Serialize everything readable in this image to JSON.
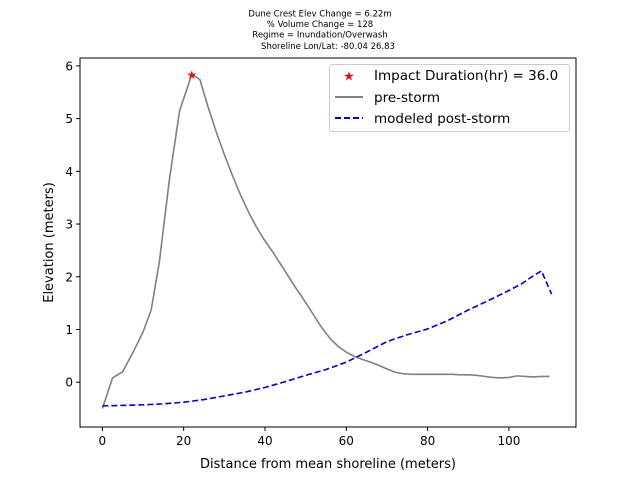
{
  "header_lines": [
    "Dune Crest Elev Change = 6.22m",
    "% Volume Change = 128",
    "Regime = Inundation/Overwash",
    "Shoreline Lon/Lat: -80.04 26.83"
  ],
  "chart_data": {
    "type": "line",
    "xlabel": "Distance from mean shoreline (meters)",
    "ylabel": "Elevation (meters)",
    "xlim": [
      -5.5,
      116.5
    ],
    "ylim": [
      -0.85,
      6.15
    ],
    "xticks": [
      0,
      20,
      40,
      60,
      80,
      100
    ],
    "yticks": [
      0,
      1,
      2,
      3,
      4,
      5,
      6
    ],
    "grid": false,
    "legend_position": "upper-right",
    "colors": {
      "pre": "#808080",
      "post": "#0000cc",
      "marker": "#dd1111"
    },
    "marker_point": {
      "name": "Impact Duration(hr) = 36.0",
      "x": 22,
      "y": 5.84
    },
    "series": [
      {
        "name": "pre-storm",
        "style": "solid",
        "x": [
          0,
          2.5,
          5,
          7.5,
          10,
          12,
          14,
          16.5,
          19,
          22,
          24,
          26,
          28,
          30,
          32,
          34,
          36,
          38,
          40,
          42,
          44,
          46,
          48,
          50,
          52,
          54,
          56,
          58,
          60,
          62,
          64,
          66,
          68,
          70,
          72,
          74,
          76,
          78,
          80,
          82,
          84,
          86,
          88,
          90,
          92,
          94,
          96,
          98,
          100,
          102,
          104,
          106,
          108,
          110
        ],
        "y": [
          -0.5,
          0.08,
          0.2,
          0.56,
          0.95,
          1.37,
          2.27,
          3.85,
          5.15,
          5.84,
          5.74,
          5.22,
          4.75,
          4.32,
          3.92,
          3.55,
          3.22,
          2.93,
          2.68,
          2.46,
          2.22,
          1.98,
          1.74,
          1.51,
          1.27,
          1.03,
          0.83,
          0.68,
          0.57,
          0.49,
          0.43,
          0.38,
          0.32,
          0.25,
          0.19,
          0.16,
          0.15,
          0.15,
          0.15,
          0.15,
          0.15,
          0.15,
          0.14,
          0.14,
          0.13,
          0.11,
          0.09,
          0.08,
          0.09,
          0.12,
          0.11,
          0.1,
          0.11,
          0.11
        ]
      },
      {
        "name": "modeled post-storm",
        "style": "dashed",
        "x": [
          0,
          10,
          15,
          20,
          25,
          30,
          35,
          40,
          45,
          50,
          55,
          60,
          65,
          70,
          75,
          80,
          85,
          90,
          95,
          100,
          103,
          106,
          108,
          110.5
        ],
        "y": [
          -0.45,
          -0.43,
          -0.41,
          -0.38,
          -0.33,
          -0.26,
          -0.19,
          -0.1,
          0.01,
          0.13,
          0.24,
          0.38,
          0.57,
          0.77,
          0.9,
          1.01,
          1.17,
          1.37,
          1.55,
          1.74,
          1.86,
          2.02,
          2.11,
          1.67
        ]
      }
    ]
  }
}
